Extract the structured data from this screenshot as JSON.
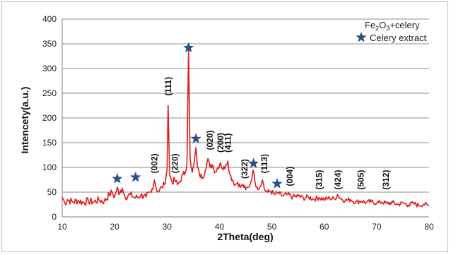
{
  "chart_data": {
    "type": "line",
    "xlabel": "2Theta(deg)",
    "ylabel": "Intencety(a.u.)",
    "xlim": [
      10,
      80
    ],
    "ylim": [
      0,
      400
    ],
    "x_ticks": [
      10,
      20,
      30,
      40,
      50,
      60,
      70,
      80
    ],
    "y_ticks": [
      0,
      50,
      100,
      150,
      200,
      250,
      300,
      350,
      400
    ],
    "grid": "horizontal",
    "legend_position": "top-right",
    "colors": {
      "line": "#e01b1b",
      "star": "#2b4f8a",
      "grid": "#8c8c8c"
    },
    "legend": {
      "entry1": {
        "prefix": "Fe",
        "sub1": "2",
        "mid": "O",
        "sub2": "3",
        "suffix": "+celery"
      },
      "entry2": {
        "label": "Celery extract",
        "marker": "star-icon"
      }
    },
    "series": [
      {
        "name": "Fe2O3+celery",
        "points": [
          [
            10,
            40
          ],
          [
            10.5,
            28
          ],
          [
            11,
            35
          ],
          [
            12,
            30
          ],
          [
            13,
            33
          ],
          [
            14,
            29
          ],
          [
            15,
            32
          ],
          [
            16,
            30
          ],
          [
            17,
            34
          ],
          [
            18,
            31
          ],
          [
            19,
            45
          ],
          [
            19.5,
            50
          ],
          [
            20,
            40
          ],
          [
            20.5,
            60
          ],
          [
            20.8,
            45
          ],
          [
            21,
            48
          ],
          [
            21.5,
            58
          ],
          [
            22,
            40
          ],
          [
            23,
            45
          ],
          [
            24,
            38
          ],
          [
            25,
            44
          ],
          [
            26,
            40
          ],
          [
            27,
            50
          ],
          [
            27.6,
            75
          ],
          [
            28,
            55
          ],
          [
            28.5,
            52
          ],
          [
            29,
            60
          ],
          [
            29.5,
            65
          ],
          [
            30,
            95
          ],
          [
            30.2,
            225
          ],
          [
            30.5,
            85
          ],
          [
            31,
            70
          ],
          [
            31.5,
            75
          ],
          [
            32,
            65
          ],
          [
            32.5,
            72
          ],
          [
            33,
            85
          ],
          [
            33.5,
            90
          ],
          [
            33.8,
            110
          ],
          [
            34.1,
            340
          ],
          [
            34.4,
            120
          ],
          [
            34.8,
            90
          ],
          [
            35.2,
            110
          ],
          [
            35.5,
            140
          ],
          [
            35.8,
            100
          ],
          [
            36.2,
            85
          ],
          [
            36.8,
            80
          ],
          [
            37.3,
            95
          ],
          [
            37.8,
            118
          ],
          [
            38.2,
            100
          ],
          [
            38.7,
            105
          ],
          [
            39.2,
            90
          ],
          [
            39.7,
            100
          ],
          [
            40.2,
            110
          ],
          [
            40.7,
            95
          ],
          [
            41.2,
            105
          ],
          [
            41.6,
            113
          ],
          [
            42,
            85
          ],
          [
            42.5,
            75
          ],
          [
            43,
            65
          ],
          [
            43.5,
            70
          ],
          [
            44,
            60
          ],
          [
            44.5,
            65
          ],
          [
            45,
            55
          ],
          [
            45.5,
            60
          ],
          [
            46,
            70
          ],
          [
            46.4,
            95
          ],
          [
            46.8,
            70
          ],
          [
            47.2,
            60
          ],
          [
            47.7,
            60
          ],
          [
            48.2,
            75
          ],
          [
            48.6,
            55
          ],
          [
            49.2,
            50
          ],
          [
            49.8,
            52
          ],
          [
            50.5,
            45
          ],
          [
            51.2,
            48
          ],
          [
            52,
            42
          ],
          [
            53,
            45
          ],
          [
            54,
            40
          ],
          [
            55,
            42
          ],
          [
            56,
            38
          ],
          [
            57,
            40
          ],
          [
            58,
            36
          ],
          [
            59,
            39
          ],
          [
            60,
            35
          ],
          [
            61,
            38
          ],
          [
            62,
            36
          ],
          [
            62.5,
            45
          ],
          [
            63,
            38
          ],
          [
            64,
            33
          ],
          [
            65,
            35
          ],
          [
            66,
            30
          ],
          [
            67,
            32
          ],
          [
            68,
            29
          ],
          [
            69,
            31
          ],
          [
            70,
            28
          ],
          [
            71,
            30
          ],
          [
            72,
            27
          ],
          [
            73,
            29
          ],
          [
            74,
            25
          ],
          [
            75,
            28
          ],
          [
            76,
            24
          ],
          [
            77,
            27
          ],
          [
            78,
            23
          ],
          [
            79,
            26
          ],
          [
            80,
            22
          ]
        ]
      }
    ],
    "peak_labels": [
      {
        "text": "(002)",
        "x": 27.6,
        "y": 88
      },
      {
        "text": "(111)",
        "x": 30.2,
        "y": 245
      },
      {
        "text": "(220)",
        "x": 31.5,
        "y": 88
      },
      {
        "text": "(020)",
        "x": 38.2,
        "y": 135
      },
      {
        "text": "(200)",
        "x": 40.2,
        "y": 130
      },
      {
        "text": "(411)",
        "x": 41.6,
        "y": 130
      },
      {
        "text": "(322)",
        "x": 44.8,
        "y": 77
      },
      {
        "text": "(113)",
        "x": 48.6,
        "y": 88
      },
      {
        "text": "(004)",
        "x": 53.4,
        "y": 62
      },
      {
        "text": "(315)",
        "x": 59.0,
        "y": 55
      },
      {
        "text": "(424)",
        "x": 62.6,
        "y": 55
      },
      {
        "text": "(505)",
        "x": 67.0,
        "y": 55
      },
      {
        "text": "(312)",
        "x": 71.8,
        "y": 55
      }
    ],
    "star_markers": [
      {
        "x": 20.5,
        "y": 77
      },
      {
        "x": 24.0,
        "y": 80
      },
      {
        "x": 34.1,
        "y": 342
      },
      {
        "x": 35.5,
        "y": 158
      },
      {
        "x": 46.5,
        "y": 108
      },
      {
        "x": 51.0,
        "y": 67
      }
    ]
  }
}
